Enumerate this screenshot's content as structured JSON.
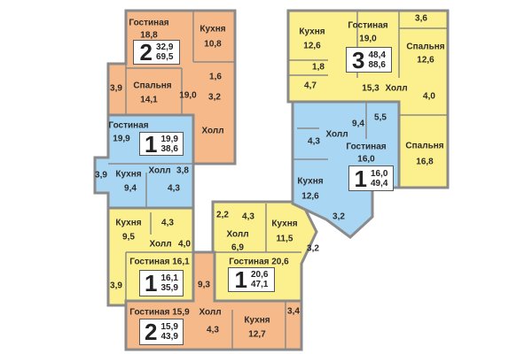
{
  "colors": {
    "orange": "#f6b98a",
    "blue": "#a9d6f2",
    "yellow": "#fbef8e",
    "wall": "#8a8a8a"
  },
  "apartments": [
    {
      "id": "A",
      "color": "orange",
      "badge": {
        "rooms": "2",
        "living": "32,9",
        "total": "69,5"
      },
      "labels": [
        "Гостиная",
        "18,8",
        "Кухня",
        "10,8",
        "Спальня",
        "14,1",
        "3,9",
        "19,0",
        "1,6",
        "3,2",
        "Холл"
      ]
    },
    {
      "id": "B",
      "color": "blue",
      "badge": {
        "rooms": "1",
        "living": "19,9",
        "total": "38,6"
      },
      "labels": [
        "Гостиная",
        "19,9",
        "Кухня",
        "9,4",
        "Холл",
        "3,8",
        "3,9",
        "4,3"
      ]
    },
    {
      "id": "C",
      "color": "yellow",
      "badge": {
        "rooms": "1",
        "living": "16,1",
        "total": "35,9"
      },
      "labels": [
        "Кухня",
        "9,5",
        "4,3",
        "Холл",
        "4,0",
        "Гостиная 16,1",
        "3,9"
      ]
    },
    {
      "id": "D",
      "color": "orange",
      "badge": {
        "rooms": "2",
        "living": "15,9",
        "total": "43,9"
      },
      "labels": [
        "9,3",
        "Гостиная 15,9",
        "Холл",
        "4,3",
        "Кухня",
        "12,7",
        "3,4"
      ]
    },
    {
      "id": "E",
      "color": "yellow",
      "badge": {
        "rooms": "1",
        "living": "20,6",
        "total": "47,1"
      },
      "labels": [
        "2,2",
        "4,3",
        "Холл",
        "6,9",
        "Кухня",
        "11,5",
        "3,2",
        "Гостиная 20,6"
      ]
    },
    {
      "id": "F",
      "color": "yellow",
      "badge": {
        "rooms": "3",
        "living": "48,4",
        "total": "88,6"
      },
      "labels": [
        "Кухня",
        "12,6",
        "Гостиная",
        "19,0",
        "3,6",
        "Спальня",
        "12,6",
        "1,8",
        "4,7",
        "15,3",
        "Холл",
        "4,0",
        "Спальня",
        "16,8"
      ]
    },
    {
      "id": "G",
      "color": "blue",
      "badge": {
        "rooms": "1",
        "living": "16,0",
        "total": "49,4"
      },
      "labels": [
        "9,4",
        "5,5",
        "Холл",
        "4,3",
        "Гостиная",
        "16,0",
        "Кухня",
        "12,6",
        "3,2"
      ]
    }
  ]
}
